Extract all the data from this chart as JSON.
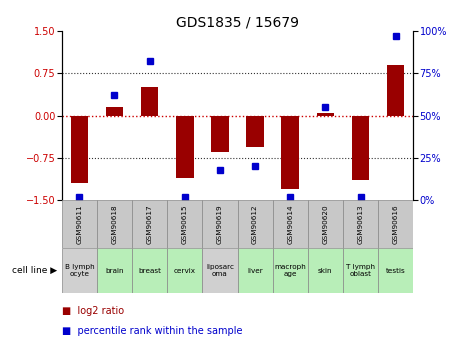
{
  "title": "GDS1835 / 15679",
  "samples": [
    "GSM90611",
    "GSM90618",
    "GSM90617",
    "GSM90615",
    "GSM90619",
    "GSM90612",
    "GSM90614",
    "GSM90620",
    "GSM90613",
    "GSM90616"
  ],
  "cell_lines": [
    "B lymph\nocyte",
    "brain",
    "breast",
    "cervix",
    "liposarc\noma",
    "liver",
    "macroph\nage",
    "skin",
    "T lymph\noblast",
    "testis"
  ],
  "cell_line_colors": [
    "#d0d0d0",
    "#b8eeb8",
    "#b8eeb8",
    "#b8eeb8",
    "#d0d0d0",
    "#b8eeb8",
    "#b8eeb8",
    "#b8eeb8",
    "#b8eeb8",
    "#b8eeb8"
  ],
  "gsm_row_color": "#c8c8c8",
  "log2_ratio": [
    -1.2,
    0.15,
    0.5,
    -1.1,
    -0.65,
    -0.55,
    -1.3,
    0.05,
    -1.15,
    0.9
  ],
  "percentile_rank": [
    2,
    62,
    82,
    2,
    18,
    20,
    2,
    55,
    2,
    97
  ],
  "ylim_left": [
    -1.5,
    1.5
  ],
  "ylim_right": [
    0,
    100
  ],
  "yticks_left": [
    -1.5,
    -0.75,
    0,
    0.75,
    1.5
  ],
  "yticks_right": [
    0,
    25,
    50,
    75,
    100
  ],
  "bar_color": "#990000",
  "dot_color": "#0000cc",
  "bar_width": 0.5,
  "hline_color": "#cc0000",
  "grid_color": "#333333",
  "bg_color": "#ffffff",
  "title_fontsize": 10,
  "tick_fontsize": 7,
  "label_fontsize": 6.5
}
